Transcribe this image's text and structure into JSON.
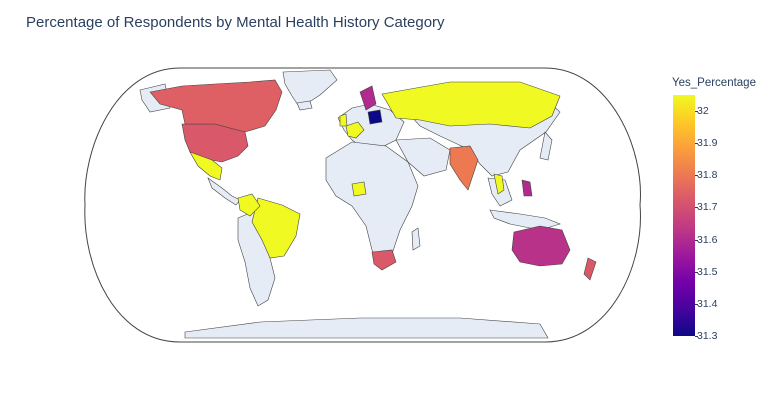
{
  "title": "Percentage of Respondents by Mental Health History Category",
  "colorbar": {
    "title": "Yes_Percentage",
    "min": 31.3,
    "max": 32.05,
    "ticks": [
      "32",
      "31.9",
      "31.8",
      "31.7",
      "31.6",
      "31.5",
      "31.4",
      "31.3"
    ],
    "tick_values": [
      32,
      31.9,
      31.8,
      31.7,
      31.6,
      31.5,
      31.4,
      31.3
    ]
  },
  "colors": {
    "land_default": "#e5ecf6",
    "border": "#444444",
    "c_low": "#0d0887",
    "c_purple": "#9c179e",
    "c_magenta": "#bf3984",
    "c_red": "#db5c68",
    "c_orange": "#f0804f",
    "c_yellow": "#f0f921"
  },
  "chart_data": {
    "type": "choropleth",
    "projection": "natural earth",
    "title": "Percentage of Respondents by Mental Health History Category",
    "color_variable": "Yes_Percentage",
    "scale_range": [
      31.3,
      32.05
    ],
    "regions": [
      {
        "name": "United States",
        "value": 31.72
      },
      {
        "name": "Canada",
        "value": 31.74
      },
      {
        "name": "Mexico",
        "value": 32.05
      },
      {
        "name": "Brazil",
        "value": 32.05
      },
      {
        "name": "Colombia",
        "value": 32.05
      },
      {
        "name": "Russia",
        "value": 32.05
      },
      {
        "name": "United Kingdom",
        "value": 32.05
      },
      {
        "name": "France",
        "value": 32.05
      },
      {
        "name": "Poland",
        "value": 31.3
      },
      {
        "name": "Sweden",
        "value": 31.6
      },
      {
        "name": "India",
        "value": 31.8
      },
      {
        "name": "Australia",
        "value": 31.62
      },
      {
        "name": "South Africa",
        "value": 31.72
      },
      {
        "name": "New Zealand",
        "value": 31.72
      },
      {
        "name": "Nigeria",
        "value": 32.05
      },
      {
        "name": "Thailand",
        "value": 32.05
      },
      {
        "name": "Philippines",
        "value": 31.6
      }
    ]
  }
}
